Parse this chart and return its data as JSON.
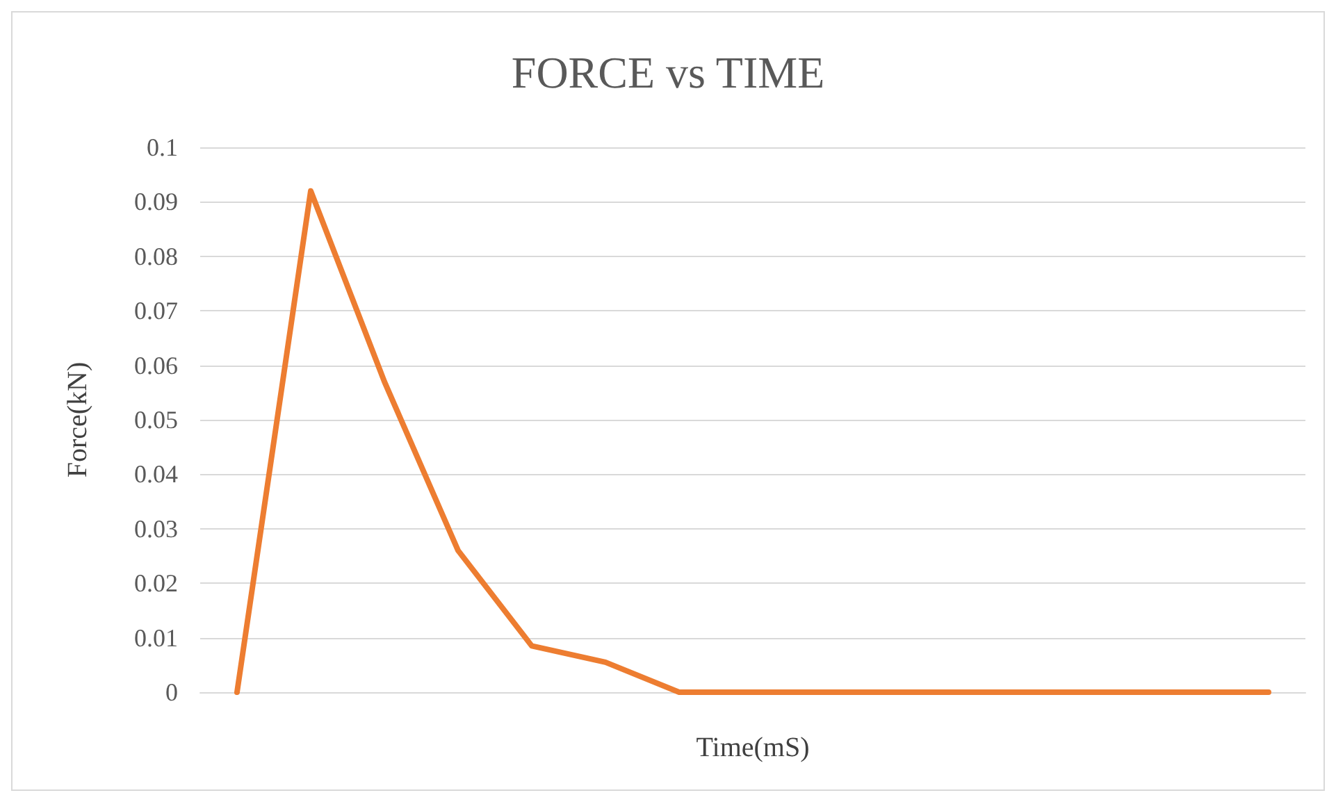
{
  "chart_data": {
    "type": "line",
    "title": "FORCE vs TIME",
    "xlabel": "Time(mS)",
    "ylabel": "Force(kN)",
    "categories": [
      null,
      null,
      null,
      null,
      null,
      null,
      null,
      null,
      null,
      null,
      null,
      null,
      null,
      null,
      null
    ],
    "series": [
      {
        "color": "#ed7d31",
        "values": [
          0,
          0.092,
          0.057,
          0.026,
          0.0085,
          0.0055,
          0,
          0,
          0,
          0,
          0,
          0,
          0,
          0,
          0
        ]
      }
    ],
    "ylim": [
      0,
      0.1
    ],
    "yticks": [
      0,
      0.01,
      0.02,
      0.03,
      0.04,
      0.05,
      0.06,
      0.07,
      0.08,
      0.09,
      0.1
    ],
    "grid": "y",
    "marker": "none",
    "line_style": "solid"
  }
}
